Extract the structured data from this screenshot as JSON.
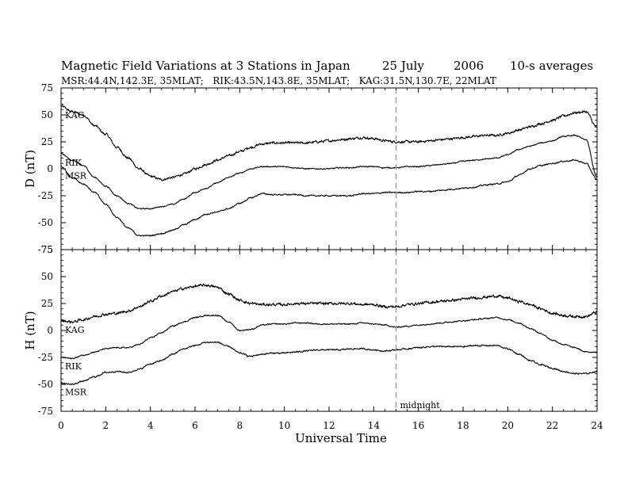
{
  "chart_data": {
    "type": "line",
    "title": "Magnetic Field Variations at 3 Stations in Japan",
    "date_day_month": "25 July",
    "date_year": "2006",
    "averaging": "10-s averages",
    "subtitle": "MSR:44.4N,142.3E, 35MLAT;   RIK:43.5N,143.8E, 35MLAT;   KAG:31.5N,130.7E, 22MLAT",
    "xlabel": "Universal Time",
    "xlim": [
      0,
      24
    ],
    "x_ticks": [
      "0",
      "2",
      "4",
      "6",
      "8",
      "10",
      "12",
      "14",
      "16",
      "18",
      "20",
      "22",
      "24"
    ],
    "x_tick_values": [
      0,
      2,
      4,
      6,
      8,
      10,
      12,
      14,
      16,
      18,
      20,
      22,
      24
    ],
    "annotation": {
      "text": "midnight",
      "x": 15,
      "line_style": "dashed",
      "line_color": "#999999"
    },
    "panels": [
      {
        "ylabel": "D (nT)",
        "ylim": [
          -75,
          75
        ],
        "y_ticks": [
          "75",
          "50",
          "25",
          "0",
          "-25",
          "-50",
          "-75"
        ],
        "y_tick_values": [
          75,
          50,
          25,
          0,
          -25,
          -50,
          -75
        ],
        "series": [
          {
            "name": "KAG",
            "noise": 1.0,
            "x": [
              0,
              0.5,
              1,
              1.5,
              2,
              2.5,
              3,
              3.5,
              4,
              4.5,
              5,
              5.5,
              6,
              6.5,
              7,
              7.5,
              8,
              8.5,
              9,
              9.5,
              10,
              10.5,
              11,
              11.5,
              12,
              12.5,
              13,
              13.5,
              14,
              14.5,
              15,
              15.5,
              16,
              16.5,
              17,
              17.5,
              18,
              18.5,
              19,
              19.5,
              20,
              20.5,
              21,
              21.5,
              22,
              22.5,
              23,
              23.5,
              24
            ],
            "y": [
              58,
              53,
              50,
              40,
              32,
              20,
              10,
              0,
              -7,
              -10,
              -8,
              -5,
              0,
              4,
              8,
              12,
              16,
              20,
              23,
              24,
              24,
              24,
              24,
              25,
              26,
              27,
              28,
              29,
              28,
              26,
              25,
              25,
              25,
              26,
              27,
              28,
              29,
              30,
              31,
              31,
              33,
              36,
              39,
              42,
              45,
              49,
              52,
              53,
              38
            ]
          },
          {
            "name": "RIK",
            "noise": 0.45,
            "x": [
              0,
              0.5,
              1,
              1.5,
              2,
              2.5,
              3,
              3.5,
              4,
              4.5,
              5,
              5.5,
              6,
              6.5,
              7,
              7.5,
              8,
              8.5,
              9,
              9.5,
              10,
              10.5,
              11,
              11.5,
              12,
              12.5,
              13,
              13.5,
              14,
              14.5,
              15,
              15.5,
              16,
              16.5,
              17,
              17.5,
              18,
              18.5,
              19,
              19.5,
              20,
              20.5,
              21,
              21.5,
              22,
              22.5,
              23,
              23.5,
              24
            ],
            "y": [
              14,
              8,
              3,
              -8,
              -16,
              -25,
              -32,
              -37,
              -37,
              -35,
              -33,
              -28,
              -22,
              -18,
              -13,
              -8,
              -4,
              0,
              2,
              2,
              2,
              1,
              0,
              0,
              0,
              1,
              1,
              2,
              2,
              1,
              1,
              2,
              2,
              3,
              4,
              5,
              7,
              8,
              9,
              10,
              13,
              18,
              21,
              24,
              26,
              30,
              31,
              27,
              -8
            ]
          },
          {
            "name": "MSR",
            "noise": 0.55,
            "x": [
              0,
              0.5,
              1,
              1.5,
              2,
              2.5,
              3,
              3.5,
              4,
              4.5,
              5,
              5.5,
              6,
              6.5,
              7,
              7.5,
              8,
              8.5,
              9,
              9.5,
              10,
              10.5,
              11,
              11.5,
              12,
              12.5,
              13,
              13.5,
              14,
              14.5,
              15,
              15.5,
              16,
              16.5,
              17,
              17.5,
              18,
              18.5,
              19,
              19.5,
              20,
              20.5,
              21,
              21.5,
              22,
              22.5,
              23,
              23.5,
              24
            ],
            "y": [
              2,
              -8,
              -14,
              -22,
              -33,
              -45,
              -55,
              -62,
              -62,
              -60,
              -57,
              -52,
              -47,
              -42,
              -40,
              -37,
              -32,
              -27,
              -23,
              -24,
              -24,
              -24,
              -25,
              -25,
              -25,
              -25,
              -25,
              -23,
              -23,
              -22,
              -22,
              -22,
              -21,
              -21,
              -20,
              -19,
              -18,
              -17,
              -15,
              -14,
              -12,
              -6,
              0,
              3,
              5,
              7,
              8,
              5,
              -10
            ]
          }
        ]
      },
      {
        "ylabel": "H (nT)",
        "ylim": [
          -75,
          75
        ],
        "y_ticks": [
          "75",
          "50",
          "25",
          "0",
          "-25",
          "-50",
          "-75"
        ],
        "y_tick_values": [
          75,
          50,
          25,
          0,
          -25,
          -50,
          -75
        ],
        "series": [
          {
            "name": "KAG",
            "noise": 1.1,
            "x": [
              0,
              0.5,
              1,
              1.5,
              2,
              2.5,
              3,
              3.5,
              4,
              4.5,
              5,
              5.5,
              6,
              6.5,
              7,
              7.5,
              8,
              8.5,
              9,
              9.5,
              10,
              10.5,
              11,
              11.5,
              12,
              12.5,
              13,
              13.5,
              14,
              14.5,
              15,
              15.5,
              16,
              16.5,
              17,
              17.5,
              18,
              18.5,
              19,
              19.5,
              20,
              20.5,
              21,
              21.5,
              22,
              22.5,
              23,
              23.5,
              24
            ],
            "y": [
              9,
              8,
              10,
              13,
              15,
              16,
              18,
              22,
              27,
              32,
              36,
              39,
              41,
              42,
              40,
              34,
              28,
              25,
              24,
              24,
              24,
              25,
              25,
              25,
              25,
              25,
              25,
              24,
              24,
              22,
              22,
              24,
              25,
              26,
              27,
              28,
              29,
              30,
              31,
              32,
              30,
              27,
              24,
              20,
              16,
              14,
              13,
              13,
              17
            ]
          },
          {
            "name": "RIK",
            "noise": 0.5,
            "x": [
              0,
              0.5,
              1,
              1.5,
              2,
              2.5,
              3,
              3.5,
              4,
              4.5,
              5,
              5.5,
              6,
              6.5,
              7,
              7.5,
              8,
              8.5,
              9,
              9.5,
              10,
              10.5,
              11,
              11.5,
              12,
              12.5,
              13,
              13.5,
              14,
              14.5,
              15,
              15.5,
              16,
              16.5,
              17,
              17.5,
              18,
              18.5,
              19,
              19.5,
              20,
              20.5,
              21,
              21.5,
              22,
              22.5,
              23,
              23.5,
              24
            ],
            "y": [
              -25,
              -26,
              -23,
              -20,
              -17,
              -16,
              -16,
              -13,
              -7,
              -2,
              4,
              8,
              12,
              14,
              14,
              8,
              0,
              1,
              5,
              6,
              6,
              7,
              7,
              6,
              6,
              6,
              6,
              7,
              6,
              5,
              3,
              4,
              5,
              6,
              7,
              8,
              9,
              10,
              11,
              12,
              10,
              7,
              2,
              -3,
              -9,
              -13,
              -16,
              -20,
              -20
            ]
          },
          {
            "name": "MSR",
            "noise": 0.6,
            "x": [
              0,
              0.5,
              1,
              1.5,
              2,
              2.5,
              3,
              3.5,
              4,
              4.5,
              5,
              5.5,
              6,
              6.5,
              7,
              7.5,
              8,
              8.5,
              9,
              9.5,
              10,
              10.5,
              11,
              11.5,
              12,
              12.5,
              13,
              13.5,
              14,
              14.5,
              15,
              15.5,
              16,
              16.5,
              17,
              17.5,
              18,
              18.5,
              19,
              19.5,
              20,
              20.5,
              21,
              21.5,
              22,
              22.5,
              23,
              23.5,
              24
            ],
            "y": [
              -49,
              -50,
              -47,
              -43,
              -39,
              -38,
              -39,
              -36,
              -31,
              -28,
              -22,
              -17,
              -14,
              -11,
              -11,
              -15,
              -21,
              -24,
              -22,
              -21,
              -21,
              -20,
              -19,
              -18,
              -18,
              -18,
              -17,
              -17,
              -18,
              -19,
              -18,
              -17,
              -16,
              -15,
              -15,
              -15,
              -15,
              -14,
              -14,
              -14,
              -17,
              -22,
              -28,
              -32,
              -35,
              -38,
              -40,
              -40,
              -38
            ]
          }
        ]
      }
    ]
  }
}
